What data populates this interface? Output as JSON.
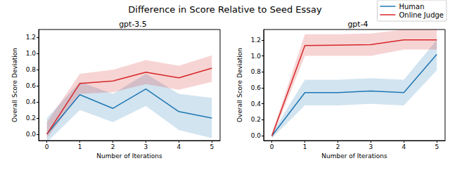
{
  "chart_data": {
    "type": "line",
    "title": "Difference in Score Relative to Seed Essay",
    "legend": "upper right",
    "subplots": [
      {
        "type": "line",
        "title": "gpt-3.5",
        "x_label": "Number of Iterations",
        "y_label": "Overall Score Deviation",
        "x": [
          0,
          1,
          2,
          3,
          4,
          5
        ],
        "xlim": [
          -0.25,
          5.25
        ],
        "xticks": [
          0,
          1,
          2,
          3,
          4,
          5
        ],
        "ylim": [
          -0.08,
          1.3
        ],
        "yticks": [
          {
            "value": 0,
            "label": "0.0"
          },
          {
            "value": 0.2,
            "label": "0.2"
          },
          {
            "value": 0.4,
            "label": "0.4"
          },
          {
            "value": 0.6,
            "label": "0.6"
          },
          {
            "value": 0.8,
            "label": "0.8"
          },
          {
            "value": 1.0,
            "label": "1.0"
          },
          {
            "value": 1.2,
            "label": "1.2"
          }
        ],
        "grid": false,
        "series": [
          {
            "name": "Human",
            "color": "#1f77b4",
            "values": [
              0.0,
              0.49,
              0.32,
              0.56,
              0.28,
              0.2
            ],
            "lower": [
              -0.1,
              0.3,
              0.15,
              0.35,
              0.05,
              -0.05
            ],
            "upper": [
              0.2,
              0.65,
              0.5,
              0.75,
              0.5,
              0.45
            ]
          },
          {
            "name": "Online Judge",
            "color": "#d62728",
            "values": [
              0.0,
              0.63,
              0.66,
              0.77,
              0.7,
              0.82
            ],
            "lower": [
              -0.05,
              0.5,
              0.52,
              0.62,
              0.55,
              0.65
            ],
            "upper": [
              0.15,
              0.75,
              0.8,
              0.92,
              0.85,
              0.98
            ]
          }
        ]
      },
      {
        "type": "line",
        "title": "gpt-4",
        "x_label": "Number of Iterations",
        "y_label": "Overall Score Deviation",
        "x": [
          0,
          1,
          2,
          3,
          4,
          5
        ],
        "xlim": [
          -0.25,
          5.25
        ],
        "xticks": [
          0,
          1,
          2,
          3,
          4,
          5
        ],
        "ylim": [
          -0.06,
          1.33
        ],
        "yticks": [
          {
            "value": 0,
            "label": "0.0"
          },
          {
            "value": 0.2,
            "label": "0.2"
          },
          {
            "value": 0.4,
            "label": "0.4"
          },
          {
            "value": 0.6,
            "label": "0.6"
          },
          {
            "value": 0.8,
            "label": "0.8"
          },
          {
            "value": 1.0,
            "label": "1.0"
          },
          {
            "value": 1.2,
            "label": "1.2"
          }
        ],
        "grid": false,
        "series": [
          {
            "name": "Human",
            "color": "#1f77b4",
            "values": [
              0.0,
              0.54,
              0.54,
              0.56,
              0.54,
              1.02
            ],
            "lower": [
              -0.03,
              0.38,
              0.38,
              0.4,
              0.38,
              0.82
            ],
            "upper": [
              0.03,
              0.7,
              0.7,
              0.72,
              0.7,
              1.2
            ]
          },
          {
            "name": "Online Judge",
            "color": "#d62728",
            "values": [
              0.0,
              1.13,
              1.135,
              1.14,
              1.2,
              1.2
            ],
            "lower": [
              -0.03,
              1.0,
              1.0,
              1.0,
              1.08,
              1.08
            ],
            "upper": [
              0.03,
              1.27,
              1.27,
              1.28,
              1.33,
              1.33
            ]
          }
        ]
      }
    ]
  }
}
